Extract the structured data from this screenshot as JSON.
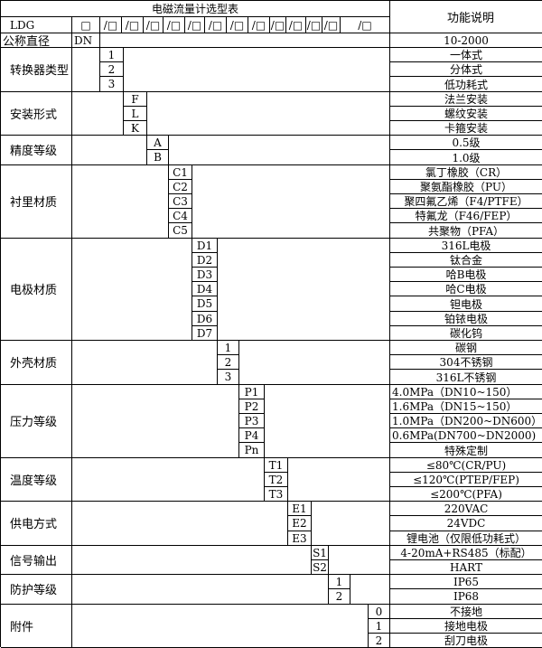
{
  "title": "电磁流量计选型表",
  "function_header": "功能说明",
  "model_prefix": "LDG",
  "model_slots": [
    "□",
    "/□",
    "/□",
    "/□",
    "/□",
    "/□",
    "/□",
    "/□",
    "/□",
    "/□",
    "/□",
    "/□",
    "/□",
    "/□"
  ],
  "nominal": {
    "label": "公称直径",
    "code": "DN",
    "desc": "10-2000"
  },
  "groups": [
    {
      "label": "转换器类型",
      "codes": [
        "1",
        "2",
        "3"
      ],
      "descs": [
        "一体式",
        "分体式",
        "低功耗式"
      ]
    },
    {
      "label": "安装形式",
      "codes": [
        "F",
        "L",
        "K"
      ],
      "descs": [
        "法兰安装",
        "螺纹安装",
        "卡箍安装"
      ]
    },
    {
      "label": "精度等级",
      "codes": [
        "A",
        "B"
      ],
      "descs": [
        "0.5级",
        "1.0级"
      ]
    },
    {
      "label": "衬里材质",
      "codes": [
        "C1",
        "C2",
        "C3",
        "C4",
        "C5"
      ],
      "descs": [
        "氯丁橡胶（CR）",
        "聚氨酯橡胶（PU）",
        "聚四氟乙烯（F4/PTFE）",
        "特氟龙（F46/FEP）",
        "共聚物（PFA）"
      ]
    },
    {
      "label": "电极材质",
      "codes": [
        "D1",
        "D2",
        "D3",
        "D4",
        "D5",
        "D6",
        "D7"
      ],
      "descs": [
        "316L电极",
        "钛合金",
        "哈B电极",
        "哈C电极",
        "钽电极",
        "铂铱电极",
        "碳化钨"
      ]
    },
    {
      "label": "外壳材质",
      "codes": [
        "1",
        "2",
        "3"
      ],
      "descs": [
        "碳钢",
        "304不锈钢",
        "316L不锈钢"
      ]
    },
    {
      "label": "压力等级",
      "codes": [
        "P1",
        "P2",
        "P3",
        "P4",
        "Pn"
      ],
      "descs": [
        "4.0MPa（DN10~150）",
        "1.6MPa（DN15~150）",
        "1.0MPa（DN200~DN600）",
        "0.6MPa(DN700~DN2000)",
        "特殊定制"
      ]
    },
    {
      "label": "温度等级",
      "codes": [
        "T1",
        "T2",
        "T3"
      ],
      "descs": [
        "≤80℃(CR/PU)",
        "≤120℃(PTEP/FEP)",
        "≤200℃(PFA)"
      ]
    },
    {
      "label": "供电方式",
      "codes": [
        "E1",
        "E2",
        "E3"
      ],
      "descs": [
        "220VAC",
        "24VDC",
        "锂电池（仅限低功耗式）"
      ]
    },
    {
      "label": "信号输出",
      "codes": [
        "S1",
        "S2"
      ],
      "descs": [
        "4-20mA+RS485（标配）",
        "HART"
      ]
    },
    {
      "label": "防护等级",
      "codes": [
        "1",
        "2"
      ],
      "descs": [
        "IP65",
        "IP68"
      ]
    },
    {
      "label": "附件",
      "codes": [
        "0",
        "1",
        "2"
      ],
      "descs": [
        "不接地",
        "接地电极",
        "刮刀电极"
      ]
    }
  ]
}
